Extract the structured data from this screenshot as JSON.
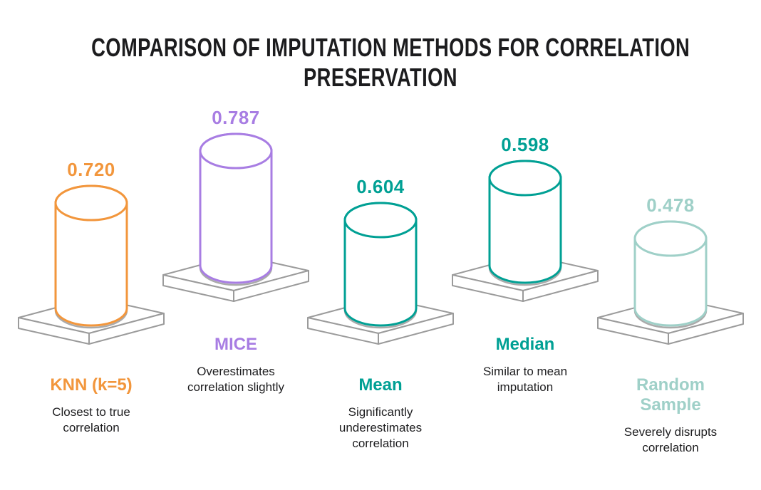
{
  "chart_data": {
    "type": "bar",
    "variant": "isometric-cylinder-infographic",
    "title": "Comparison of Imputation Methods for Correlation Preservation",
    "title_lines": [
      "COMPARISON OF IMPUTATION METHODS FOR CORRELATION",
      "PRESERVATION"
    ],
    "categories": [
      "KNN (k=5)",
      "MICE",
      "Mean",
      "Median",
      "Random Sample"
    ],
    "values": [
      0.72,
      0.787,
      0.604,
      0.598,
      0.478
    ],
    "value_labels": [
      "0.720",
      "0.787",
      "0.604",
      "0.598",
      "0.478"
    ],
    "annotations": [
      "Closest to true correlation",
      "Overestimates correlation slightly",
      "Significantly underestimates correlation",
      "Similar to mean imputation",
      "Severely disrupts correlation"
    ],
    "colors": [
      "#F2963C",
      "#A87DE3",
      "#00A094",
      "#00A094",
      "#9FD0C8"
    ],
    "platform_color": "#9B9B9B",
    "shadow_color": "#AAAAAA",
    "background": "#FFFFFF",
    "text_color": "#1D1D1F",
    "ylim": [
      0,
      1
    ],
    "layout": {
      "stagger": "alternating-platform-heights",
      "legend": "none",
      "grid": false
    }
  }
}
